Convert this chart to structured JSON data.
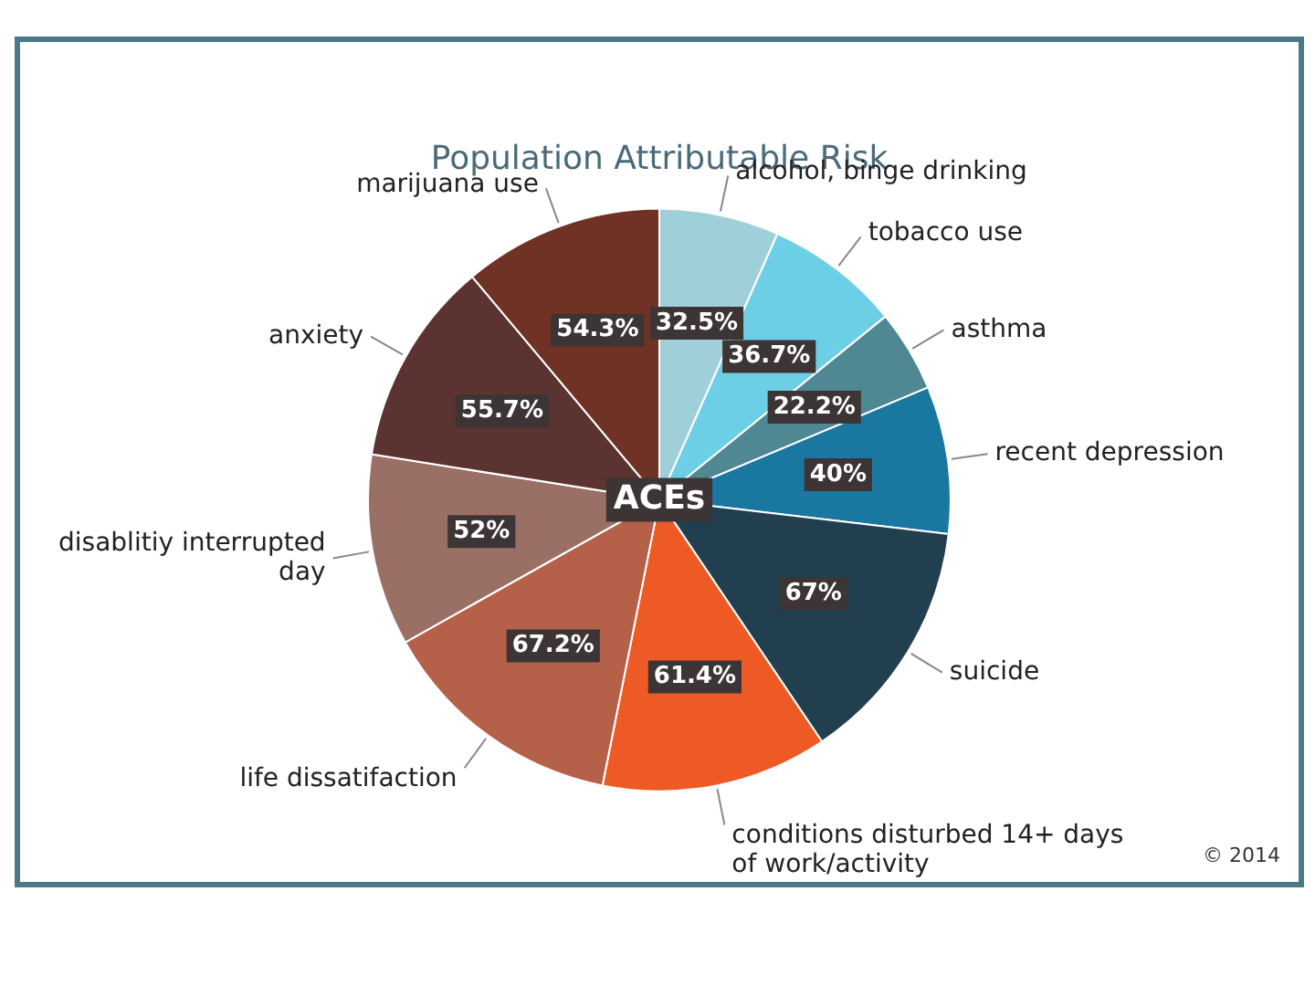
{
  "chart_data": {
    "type": "pie",
    "title": "Population Attributable Risk",
    "categories": [
      "alcohol, binge drinking",
      "tobacco use",
      "asthma",
      "recent depression",
      "suicide",
      "conditions disturbed 14+ days of work/activity",
      "life dissatifaction",
      "disablitiy interrupted day",
      "anxiety",
      "marijuana use"
    ],
    "values": [
      32.5,
      36.7,
      22.2,
      40,
      67,
      61.4,
      67.2,
      52,
      55.7,
      54.3
    ],
    "colors": [
      "#9fcfd9",
      "#6dcfe6",
      "#4f8792",
      "#1a78a0",
      "#213f4f",
      "#ee5a26",
      "#b5614a",
      "#9a7066",
      "#5b3330",
      "#6f3225"
    ],
    "value_labels": [
      "32.5%",
      "36.7%",
      "22.2%",
      "40%",
      "67%",
      "61.4%",
      "67.2%",
      "52%",
      "55.7%",
      "54.3%"
    ],
    "annotations": [
      "ACEs",
      "© 2014"
    ],
    "legend": false
  }
}
